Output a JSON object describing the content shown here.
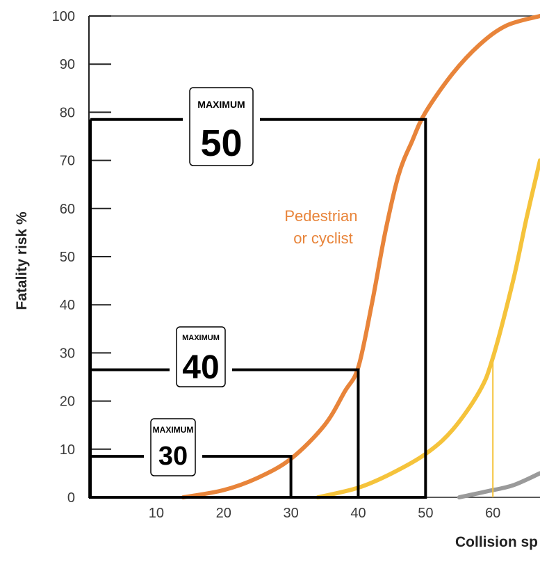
{
  "chart_data": {
    "type": "line",
    "title": "",
    "xlabel": "Collision sp",
    "ylabel": "Fatality risk %",
    "xlim": [
      0,
      67
    ],
    "ylim": [
      0,
      100
    ],
    "x_ticks": [
      10,
      20,
      30,
      40,
      50,
      60
    ],
    "y_ticks": [
      0,
      10,
      20,
      30,
      40,
      50,
      60,
      70,
      80,
      90,
      100
    ],
    "grid": false,
    "series": [
      {
        "name": "Pedestrian or cyclist",
        "label_lines": [
          "Pedestrian",
          "or cyclist"
        ],
        "color": "#e8843a",
        "points": [
          [
            14,
            0
          ],
          [
            20,
            1.5
          ],
          [
            25,
            4
          ],
          [
            30,
            8
          ],
          [
            35,
            15
          ],
          [
            38,
            22
          ],
          [
            40,
            27
          ],
          [
            42,
            40
          ],
          [
            44,
            55
          ],
          [
            46,
            67
          ],
          [
            48,
            74
          ],
          [
            50,
            80
          ],
          [
            54,
            88
          ],
          [
            58,
            94
          ],
          [
            62,
            98
          ],
          [
            67,
            100
          ]
        ]
      },
      {
        "name": "",
        "color": "#f5c33b",
        "points": [
          [
            34,
            0
          ],
          [
            40,
            2
          ],
          [
            45,
            5
          ],
          [
            50,
            9
          ],
          [
            54,
            14
          ],
          [
            58,
            22
          ],
          [
            60,
            29
          ],
          [
            63,
            45
          ],
          [
            65,
            58
          ],
          [
            67,
            70
          ]
        ]
      },
      {
        "name": "",
        "color": "#9a9a9a",
        "points": [
          [
            55,
            0
          ],
          [
            59,
            1.2
          ],
          [
            63,
            2.5
          ],
          [
            67,
            5
          ]
        ]
      }
    ],
    "reference_drops": [
      {
        "x": 60,
        "y": 29,
        "color": "#f5c33b"
      }
    ],
    "speed_limit_boxes": [
      {
        "speed": 30,
        "risk": 8.5,
        "sign_top": "MAXIMUM",
        "sign_value": "30"
      },
      {
        "speed": 40,
        "risk": 26.5,
        "sign_top": "MAXIMUM",
        "sign_value": "40"
      },
      {
        "speed": 50,
        "risk": 78.5,
        "sign_top": "MAXIMUM",
        "sign_value": "50"
      }
    ]
  }
}
